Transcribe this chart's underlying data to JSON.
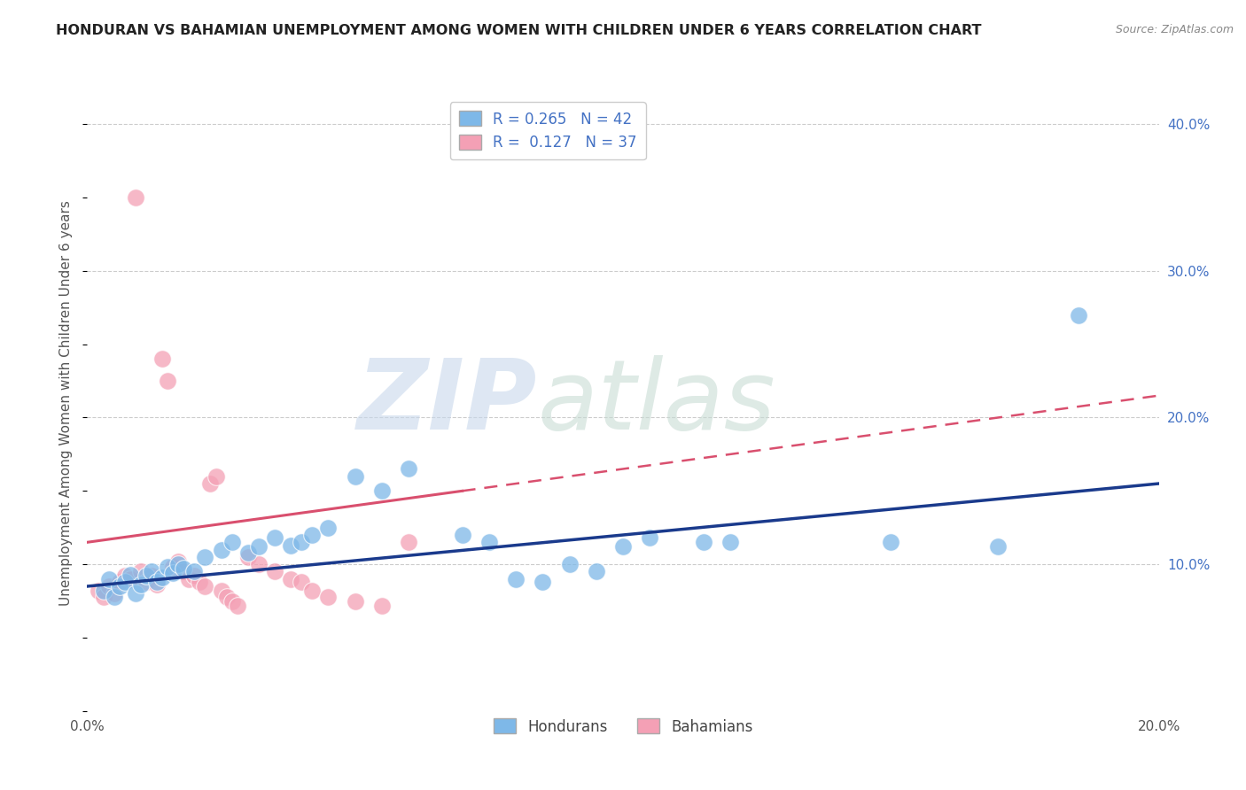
{
  "title": "HONDURAN VS BAHAMIAN UNEMPLOYMENT AMONG WOMEN WITH CHILDREN UNDER 6 YEARS CORRELATION CHART",
  "source": "Source: ZipAtlas.com",
  "ylabel": "Unemployment Among Women with Children Under 6 years",
  "xlim": [
    0.0,
    0.2
  ],
  "ylim": [
    0.0,
    0.42
  ],
  "honduran_color": "#7eb8e8",
  "bahamian_color": "#f4a0b5",
  "honduran_line_color": "#1a3a8c",
  "bahamian_line_color": "#d94f6e",
  "honduran_points": [
    [
      0.003,
      0.082
    ],
    [
      0.004,
      0.09
    ],
    [
      0.005,
      0.078
    ],
    [
      0.006,
      0.085
    ],
    [
      0.007,
      0.088
    ],
    [
      0.008,
      0.093
    ],
    [
      0.009,
      0.08
    ],
    [
      0.01,
      0.086
    ],
    [
      0.011,
      0.092
    ],
    [
      0.012,
      0.095
    ],
    [
      0.013,
      0.088
    ],
    [
      0.014,
      0.091
    ],
    [
      0.015,
      0.098
    ],
    [
      0.016,
      0.094
    ],
    [
      0.017,
      0.1
    ],
    [
      0.018,
      0.097
    ],
    [
      0.02,
      0.095
    ],
    [
      0.022,
      0.105
    ],
    [
      0.025,
      0.11
    ],
    [
      0.027,
      0.115
    ],
    [
      0.03,
      0.108
    ],
    [
      0.032,
      0.112
    ],
    [
      0.035,
      0.118
    ],
    [
      0.038,
      0.113
    ],
    [
      0.04,
      0.115
    ],
    [
      0.042,
      0.12
    ],
    [
      0.045,
      0.125
    ],
    [
      0.05,
      0.16
    ],
    [
      0.055,
      0.15
    ],
    [
      0.06,
      0.165
    ],
    [
      0.07,
      0.12
    ],
    [
      0.075,
      0.115
    ],
    [
      0.08,
      0.09
    ],
    [
      0.085,
      0.088
    ],
    [
      0.09,
      0.1
    ],
    [
      0.095,
      0.095
    ],
    [
      0.1,
      0.112
    ],
    [
      0.105,
      0.118
    ],
    [
      0.115,
      0.115
    ],
    [
      0.12,
      0.115
    ],
    [
      0.15,
      0.115
    ],
    [
      0.17,
      0.112
    ],
    [
      0.185,
      0.27
    ]
  ],
  "bahamian_points": [
    [
      0.002,
      0.082
    ],
    [
      0.003,
      0.078
    ],
    [
      0.004,
      0.085
    ],
    [
      0.005,
      0.08
    ],
    [
      0.006,
      0.088
    ],
    [
      0.007,
      0.092
    ],
    [
      0.008,
      0.09
    ],
    [
      0.009,
      0.35
    ],
    [
      0.01,
      0.095
    ],
    [
      0.011,
      0.088
    ],
    [
      0.012,
      0.092
    ],
    [
      0.013,
      0.086
    ],
    [
      0.014,
      0.24
    ],
    [
      0.015,
      0.225
    ],
    [
      0.016,
      0.098
    ],
    [
      0.017,
      0.102
    ],
    [
      0.018,
      0.095
    ],
    [
      0.019,
      0.09
    ],
    [
      0.02,
      0.092
    ],
    [
      0.021,
      0.088
    ],
    [
      0.022,
      0.085
    ],
    [
      0.023,
      0.155
    ],
    [
      0.024,
      0.16
    ],
    [
      0.025,
      0.082
    ],
    [
      0.026,
      0.078
    ],
    [
      0.027,
      0.075
    ],
    [
      0.028,
      0.072
    ],
    [
      0.03,
      0.105
    ],
    [
      0.032,
      0.1
    ],
    [
      0.035,
      0.095
    ],
    [
      0.038,
      0.09
    ],
    [
      0.04,
      0.088
    ],
    [
      0.042,
      0.082
    ],
    [
      0.045,
      0.078
    ],
    [
      0.05,
      0.075
    ],
    [
      0.055,
      0.072
    ],
    [
      0.06,
      0.115
    ]
  ]
}
